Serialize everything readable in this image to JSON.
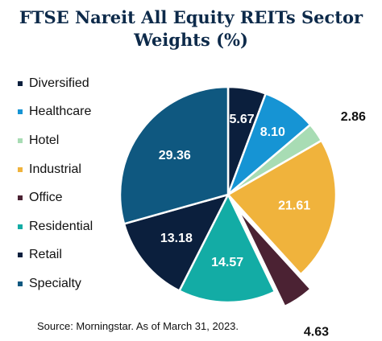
{
  "chart_data": {
    "type": "pie",
    "title": "FTSE Nareit All Equity REITs Sector Weights (%)",
    "categories": [
      "Diversified",
      "Healthcare",
      "Hotel",
      "Industrial",
      "Office",
      "Residential",
      "Retail",
      "Specialty"
    ],
    "values": [
      5.67,
      8.1,
      2.86,
      21.61,
      4.63,
      14.57,
      13.18,
      29.36
    ],
    "value_labels": [
      "5.67",
      "8.10",
      "2.86",
      "21.61",
      "4.63",
      "14.57",
      "13.18",
      "29.36"
    ],
    "colors": [
      "#0b1f3d",
      "#1694d4",
      "#a8dcb4",
      "#f0b33c",
      "#4b2233",
      "#13aca5",
      "#0b1f3d",
      "#0f5880"
    ],
    "exploded": [
      "Office"
    ],
    "legend_position": "left",
    "source": "Source: Morningstar. As of March 31, 2023."
  }
}
